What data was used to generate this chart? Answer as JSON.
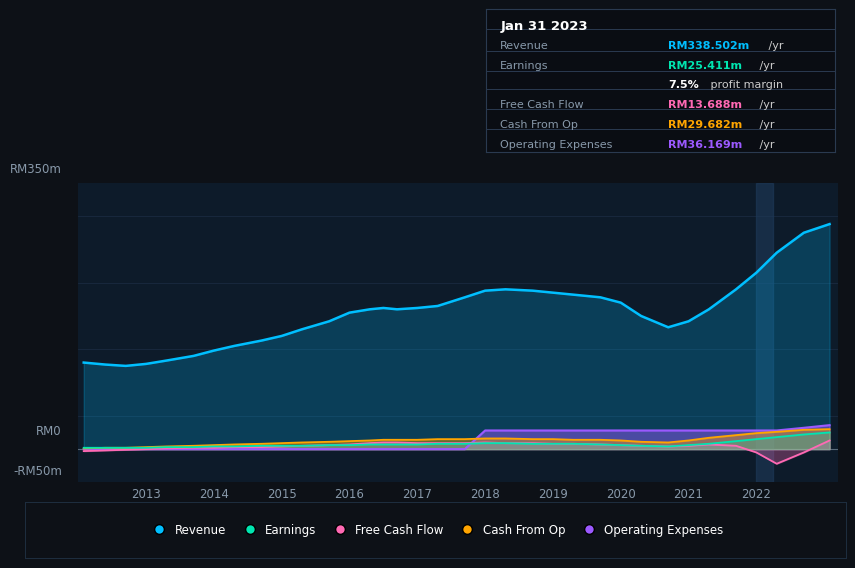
{
  "background_color": "#0d1117",
  "plot_bg_color": "#0d1b2a",
  "years": [
    2012.08,
    2012.4,
    2012.7,
    2013.0,
    2013.3,
    2013.7,
    2014.0,
    2014.3,
    2014.7,
    2015.0,
    2015.3,
    2015.7,
    2016.0,
    2016.3,
    2016.5,
    2016.7,
    2017.0,
    2017.3,
    2017.7,
    2018.0,
    2018.3,
    2018.7,
    2019.0,
    2019.3,
    2019.7,
    2020.0,
    2020.3,
    2020.7,
    2021.0,
    2021.3,
    2021.7,
    2022.0,
    2022.3,
    2022.7,
    2023.08
  ],
  "revenue": [
    130,
    127,
    125,
    128,
    133,
    140,
    148,
    155,
    163,
    170,
    180,
    192,
    205,
    210,
    212,
    210,
    212,
    215,
    228,
    238,
    240,
    238,
    235,
    232,
    228,
    220,
    200,
    183,
    192,
    210,
    240,
    265,
    295,
    325,
    338
  ],
  "earnings": [
    2,
    2,
    2,
    2,
    3,
    3,
    4,
    4,
    5,
    5,
    5,
    6,
    6,
    7,
    7,
    7,
    7,
    8,
    8,
    9,
    9,
    8,
    8,
    8,
    7,
    6,
    5,
    4,
    6,
    8,
    12,
    15,
    18,
    22,
    25
  ],
  "free_cash_flow": [
    -3,
    -2,
    -1,
    0,
    1,
    2,
    2,
    3,
    3,
    4,
    5,
    6,
    7,
    9,
    10,
    10,
    9,
    9,
    9,
    10,
    9,
    9,
    8,
    8,
    7,
    6,
    5,
    4,
    5,
    7,
    5,
    -5,
    -22,
    -5,
    13
  ],
  "cash_from_op": [
    1,
    2,
    2,
    3,
    4,
    5,
    6,
    7,
    8,
    9,
    10,
    11,
    12,
    13,
    14,
    14,
    14,
    15,
    15,
    16,
    16,
    15,
    15,
    14,
    14,
    13,
    11,
    10,
    13,
    17,
    21,
    24,
    26,
    29,
    30
  ],
  "operating_expenses": [
    0,
    0,
    0,
    0,
    0,
    0,
    0,
    0,
    0,
    0,
    0,
    0,
    0,
    0,
    0,
    0,
    0,
    0,
    0,
    28,
    28,
    28,
    28,
    28,
    28,
    28,
    28,
    28,
    28,
    28,
    28,
    28,
    28,
    32,
    36
  ],
  "revenue_color": "#00bfff",
  "earnings_color": "#00e5b0",
  "fcf_color": "#ff69b4",
  "cashop_color": "#ffa500",
  "opex_color": "#9b59ff",
  "ylim_min": -50,
  "ylim_max": 400,
  "xlim_start": 2012.0,
  "xlim_end": 2023.2,
  "grid_color": "#1a2a40",
  "zero_line_color": "#5a6a7a",
  "tick_color": "#8899aa",
  "x_ticks": [
    2013,
    2014,
    2015,
    2016,
    2017,
    2018,
    2019,
    2020,
    2021,
    2022
  ],
  "x_tick_labels": [
    "2013",
    "2014",
    "2015",
    "2016",
    "2017",
    "2018",
    "2019",
    "2020",
    "2021",
    "2022"
  ],
  "ylabel_350": "RM350m",
  "ylabel_0": "RM0",
  "ylabel_neg50": "-RM50m",
  "tooltip_title": "Jan 31 2023",
  "tooltip_rows": [
    {
      "label": "Revenue",
      "value": "RM338.502m",
      "suffix": " /yr",
      "value_color": "#00bfff",
      "label_color": "#8899aa"
    },
    {
      "label": "Earnings",
      "value": "RM25.411m",
      "suffix": " /yr",
      "value_color": "#00e5b0",
      "label_color": "#8899aa"
    },
    {
      "label": "",
      "value": "7.5%",
      "suffix": " profit margin",
      "value_color": "#ffffff",
      "label_color": "#8899aa"
    },
    {
      "label": "Free Cash Flow",
      "value": "RM13.688m",
      "suffix": " /yr",
      "value_color": "#ff69b4",
      "label_color": "#8899aa"
    },
    {
      "label": "Cash From Op",
      "value": "RM29.682m",
      "suffix": " /yr",
      "value_color": "#ffa500",
      "label_color": "#8899aa"
    },
    {
      "label": "Operating Expenses",
      "value": "RM36.169m",
      "suffix": " /yr",
      "value_color": "#9b59ff",
      "label_color": "#8899aa"
    }
  ],
  "legend_items": [
    {
      "label": "Revenue",
      "color": "#00bfff"
    },
    {
      "label": "Earnings",
      "color": "#00e5b0"
    },
    {
      "label": "Free Cash Flow",
      "color": "#ff69b4"
    },
    {
      "label": "Cash From Op",
      "color": "#ffa500"
    },
    {
      "label": "Operating Expenses",
      "color": "#9b59ff"
    }
  ]
}
